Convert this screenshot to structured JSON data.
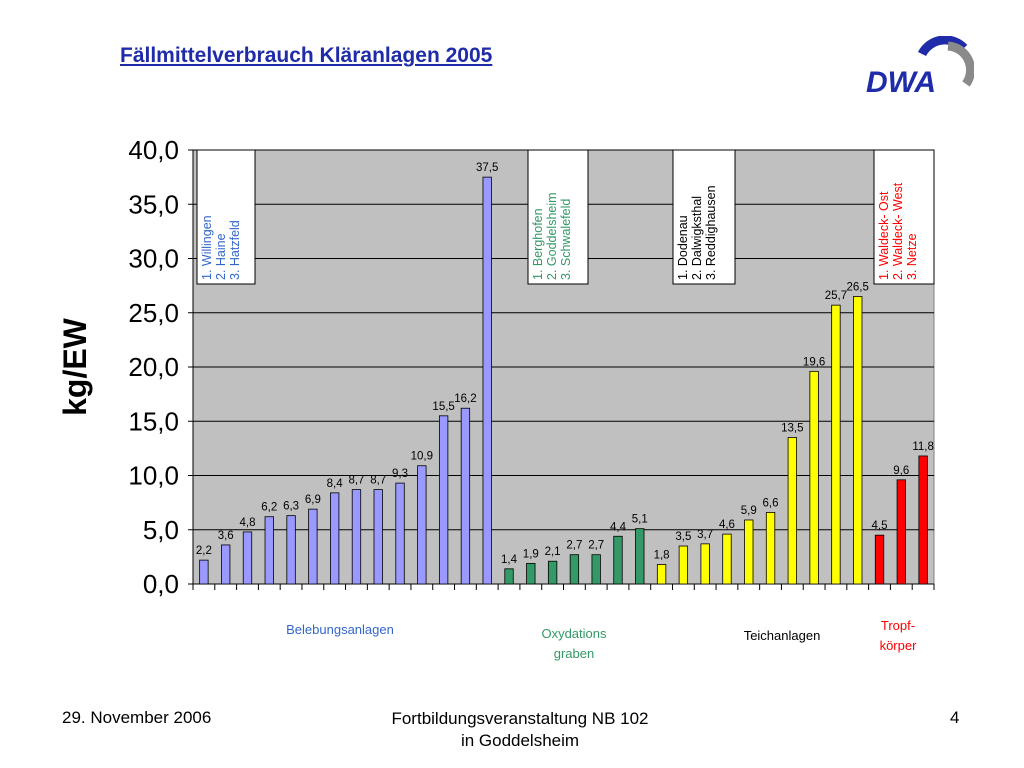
{
  "slide": {
    "title": "Fällmittelverbrauch Kläranlagen 2005",
    "logo_text": "DWA",
    "footer": {
      "date": "29. November 2006",
      "event_line1": "Fortbildungsveranstaltung NB 102",
      "event_line2": "in Goddelsheim",
      "page": "4"
    }
  },
  "chart_data": {
    "type": "bar",
    "title": "",
    "xlabel": "",
    "ylabel": "kg/EW",
    "ylim": [
      0,
      40
    ],
    "yticks": [
      "0,0",
      "5,0",
      "10,0",
      "15,0",
      "20,0",
      "25,0",
      "30,0",
      "35,0",
      "40,0"
    ],
    "grid": true,
    "plot_background": "#c0c0c0",
    "groups": [
      {
        "name": "Belebungsanlagen",
        "color": "#9999ff",
        "label_color": "#3366cc",
        "legend_lines": [
          "1. Willingen",
          "2. Haine",
          "3. Hatzfeld"
        ],
        "values": [
          2.2,
          3.6,
          4.8,
          6.2,
          6.3,
          6.9,
          8.4,
          8.7,
          8.7,
          9.3,
          10.9,
          15.5,
          16.2,
          37.5
        ],
        "labels": [
          "2,2",
          "3,6",
          "4,8",
          "6,2",
          "6,3",
          "6,9",
          "8,4",
          "8,7",
          "8,7",
          "9,3",
          "10,9",
          "15,5",
          "16,2",
          "37,5"
        ]
      },
      {
        "name": "Oxydations graben",
        "name_lines": [
          "Oxydations",
          "graben"
        ],
        "color": "#339966",
        "label_color": "#339966",
        "legend_lines": [
          "1. Berghofen",
          "2. Goddelsheim",
          "3. Schwalefeld"
        ],
        "values": [
          1.4,
          1.9,
          2.1,
          2.7,
          2.7,
          4.4,
          5.1
        ],
        "labels": [
          "1,4",
          "1,9",
          "2,1",
          "2,7",
          "2,7",
          "4,4",
          "5,1"
        ]
      },
      {
        "name": "Teichanlagen",
        "color": "#ffff00",
        "label_color": "#000000",
        "legend_lines": [
          "1. Dodenau",
          "2. Dalwigksthal",
          "3. Reddighausen"
        ],
        "values": [
          1.8,
          3.5,
          3.7,
          4.6,
          5.9,
          6.6,
          13.5,
          19.6,
          25.7,
          26.5
        ],
        "labels": [
          "1,8",
          "3,5",
          "3,7",
          "4,6",
          "5,9",
          "6,6",
          "13,5",
          "19,6",
          "25,7",
          "26,5"
        ]
      },
      {
        "name": "Tropf- körper",
        "name_lines": [
          "Tropf-",
          "körper"
        ],
        "color": "#ff0000",
        "label_color": "#ff0000",
        "legend_lines": [
          "1. Waldeck- Ost",
          "2. Waldeck- West",
          "3. Netze"
        ],
        "values": [
          4.5,
          9.6,
          11.8
        ],
        "labels": [
          "4,5",
          "9,6",
          "11,8"
        ]
      }
    ]
  }
}
